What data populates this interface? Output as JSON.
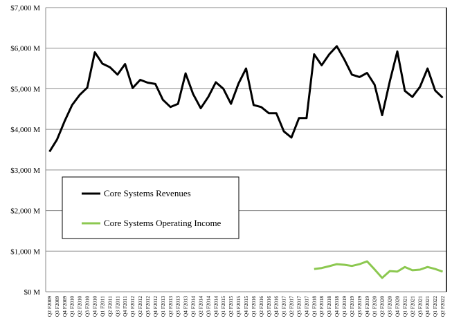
{
  "chart_data": {
    "type": "line",
    "title": "",
    "xlabel": "",
    "ylabel": "",
    "ylim": [
      0,
      7000
    ],
    "yticks": [
      "$0 M",
      "$1,000 M",
      "$2,000 M",
      "$3,000 M",
      "$4,000 M",
      "$5,000 M",
      "$6,000 M",
      "$7,000 M"
    ],
    "ytick_values": [
      0,
      1000,
      2000,
      3000,
      4000,
      5000,
      6000,
      7000
    ],
    "grid": true,
    "legend_position": "center-left",
    "categories": [
      "Q2 F2009",
      "Q3 F2009",
      "Q4 F2009",
      "Q1 F2010",
      "Q2 F2010",
      "Q3 F2010",
      "Q4 F2010",
      "Q1 F2011",
      "Q2 F2011",
      "Q3 F2011",
      "Q4 F2011",
      "Q1 F2012",
      "Q2 F2012",
      "Q3 F2012",
      "Q4 F2012",
      "Q1 F2013",
      "Q2 F2013",
      "Q3 F2013",
      "Q4 F2013",
      "Q1 F2014",
      "Q2 F2014",
      "Q3 F2014",
      "Q4 F2014",
      "Q1 F2015",
      "Q2 F2015",
      "Q3 F2015",
      "Q4 F2015",
      "Q1 F2016",
      "Q2 F2016",
      "Q3 F2016",
      "Q4 F2016",
      "Q1 F2017",
      "Q2 F2017",
      "Q3 F2017",
      "Q4 F2017",
      "Q1 F2018",
      "Q2 F2018",
      "Q3 F2018",
      "Q4 F2018",
      "Q1 F2019",
      "Q2 F2019",
      "Q3 F2019",
      "Q4 F2019",
      "Q1 F2020",
      "Q2 F2020",
      "Q3 F2020",
      "Q4 F2020",
      "Q1 F2021",
      "Q2 F2021",
      "Q3 F2021",
      "Q4 F2021",
      "Q1 F2022",
      "Q2 F2022"
    ],
    "series": [
      {
        "name": "Core Systems Revenues",
        "color": "#000000",
        "values": [
          3450,
          3750,
          4200,
          4600,
          4850,
          5030,
          5900,
          5620,
          5530,
          5350,
          5610,
          5020,
          5220,
          5150,
          5120,
          4730,
          4550,
          4630,
          5380,
          4870,
          4520,
          4800,
          5160,
          5000,
          4630,
          5130,
          5500,
          4600,
          4550,
          4400,
          4400,
          3950,
          3800,
          4280,
          4280,
          5850,
          5580,
          5850,
          6050,
          5720,
          5350,
          5290,
          5390,
          5100,
          4350,
          5180,
          5920,
          4950,
          4800,
          5050,
          5500,
          4960,
          4780
        ]
      },
      {
        "name": "Core Systems Operating Income",
        "color": "#8cc850",
        "values": [
          null,
          null,
          null,
          null,
          null,
          null,
          null,
          null,
          null,
          null,
          null,
          null,
          null,
          null,
          null,
          null,
          null,
          null,
          null,
          null,
          null,
          null,
          null,
          null,
          null,
          null,
          null,
          null,
          null,
          null,
          null,
          null,
          null,
          null,
          null,
          560,
          585,
          630,
          680,
          665,
          635,
          680,
          750,
          550,
          340,
          510,
          495,
          610,
          530,
          545,
          610,
          560,
          495
        ]
      }
    ]
  }
}
